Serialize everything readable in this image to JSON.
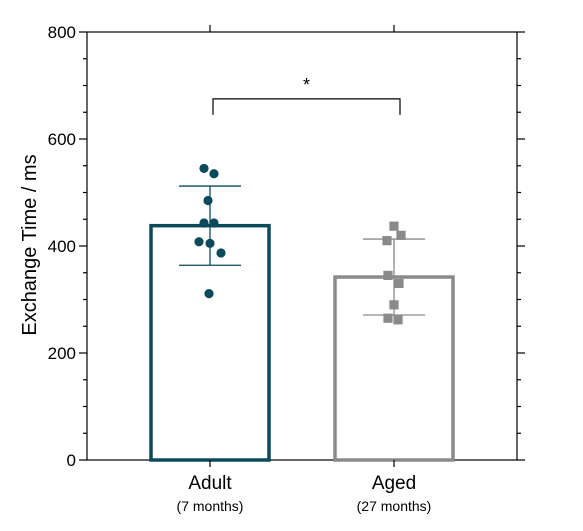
{
  "chart_data": {
    "type": "bar",
    "categories": [
      "Adult",
      "Aged"
    ],
    "category_sublabels": [
      "(7 months)",
      "(27 months)"
    ],
    "ylabel": "Exchange Time / ms",
    "ylim": [
      0,
      800
    ],
    "yticks": [
      0,
      200,
      400,
      600,
      800
    ],
    "grid": false,
    "series": [
      {
        "values": [
          438,
          342
        ],
        "errors": [
          74,
          71
        ],
        "colors": [
          "#0b4a5a",
          "#8a8a8a"
        ]
      }
    ],
    "points": [
      {
        "category": "Adult",
        "marker": "circle",
        "color": "#0b4a5a",
        "values": [
          545,
          535,
          485,
          443,
          443,
          408,
          405,
          387,
          311
        ]
      },
      {
        "category": "Aged",
        "marker": "square",
        "color": "#8a8a8a",
        "values": [
          437,
          420,
          410,
          345,
          330,
          290,
          265,
          262
        ]
      }
    ],
    "significance": {
      "between": [
        "Adult",
        "Aged"
      ],
      "label": "*",
      "y": 675
    }
  }
}
